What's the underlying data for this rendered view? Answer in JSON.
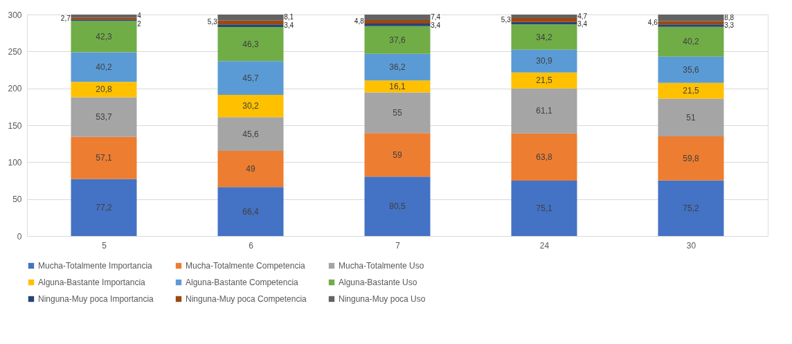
{
  "chart_data": {
    "type": "bar",
    "stacked": true,
    "categories": [
      "5",
      "6",
      "7",
      "24",
      "30"
    ],
    "series": [
      {
        "name": "Mucha-Totalmente Importancia",
        "color": "#4472c4",
        "values": [
          77.2,
          66.4,
          80.5,
          75.1,
          75.2
        ],
        "value_labels": [
          "77,2",
          "66,4",
          "80,5",
          "75,1",
          "75,2"
        ]
      },
      {
        "name": "Mucha-Totalmente Competencia",
        "color": "#ed7d31",
        "values": [
          57.1,
          49,
          59,
          63.8,
          59.8
        ],
        "value_labels": [
          "57,1",
          "49",
          "59",
          "63,8",
          "59,8"
        ]
      },
      {
        "name": "Mucha-Totalmente Uso",
        "color": "#a5a5a5",
        "values": [
          53.7,
          45.6,
          55,
          61.1,
          51
        ],
        "value_labels": [
          "53,7",
          "45,6",
          "55",
          "61,1",
          "51"
        ]
      },
      {
        "name": "Alguna-Bastante Importancia",
        "color": "#ffc000",
        "values": [
          20.8,
          30.2,
          16.1,
          21.5,
          21.5
        ],
        "value_labels": [
          "20,8",
          "30,2",
          "16,1",
          "21,5",
          "21,5"
        ]
      },
      {
        "name": "Alguna-Bastante Competencia",
        "color": "#5b9bd5",
        "values": [
          40.2,
          45.7,
          36.2,
          30.9,
          35.6
        ],
        "value_labels": [
          "40,2",
          "45,7",
          "36,2",
          "30,9",
          "35,6"
        ]
      },
      {
        "name": "Alguna-Bastante Uso",
        "color": "#70ad47",
        "values": [
          42.3,
          46.3,
          37.6,
          34.2,
          40.2
        ],
        "value_labels": [
          "42,3",
          "46,3",
          "37,6",
          "34,2",
          "40,2"
        ]
      },
      {
        "name": "Ninguna-Muy poca Importancia",
        "color": "#264478",
        "values": [
          2.0,
          3.4,
          3.4,
          3.4,
          3.3
        ],
        "value_labels": [
          "2",
          "3,4",
          "3,4",
          "3,4",
          "3,3"
        ]
      },
      {
        "name": "Ninguna-Muy poca Competencia",
        "color": "#9e480e",
        "values": [
          2.7,
          5.3,
          4.8,
          5.3,
          4.6
        ],
        "value_labels": [
          "2,7",
          "5,3",
          "4,8",
          "5,3",
          "4,6"
        ]
      },
      {
        "name": "Ninguna-Muy poca Uso",
        "color": "#636363",
        "values": [
          4.0,
          8.1,
          7.4,
          4.7,
          8.8
        ],
        "value_labels": [
          "4",
          "8,1",
          "7,4",
          "4,7",
          "8,8"
        ]
      }
    ],
    "ylim": [
      0,
      300
    ],
    "yticks": [
      0,
      50,
      100,
      150,
      200,
      250,
      300
    ],
    "grid": "y",
    "legend": "bottom"
  }
}
